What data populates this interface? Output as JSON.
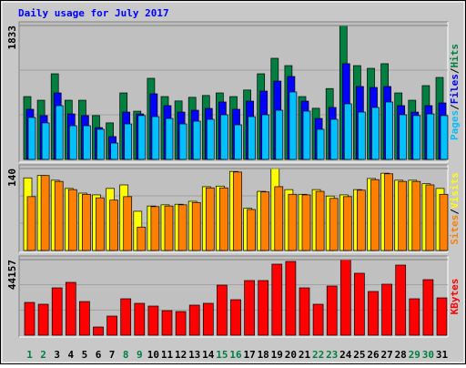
{
  "chart_data": [
    {
      "type": "bar",
      "title": "Daily usage for July 2017",
      "title_color": "#0000ff",
      "categories": [
        "1",
        "2",
        "3",
        "4",
        "5",
        "6",
        "7",
        "8",
        "9",
        "10",
        "11",
        "12",
        "13",
        "14",
        "15",
        "16",
        "17",
        "18",
        "19",
        "20",
        "21",
        "22",
        "23",
        "24",
        "25",
        "26",
        "27",
        "28",
        "29",
        "30",
        "31"
      ],
      "ylim": [
        0,
        1833
      ],
      "yticks": [
        1833
      ],
      "legend_separator": "/",
      "series": [
        {
          "name": "Pages",
          "color": "#00c0ff",
          "values": [
            574,
            500,
            736,
            461,
            461,
            412,
            224,
            486,
            600,
            586,
            561,
            486,
            524,
            549,
            611,
            474,
            586,
            611,
            673,
            923,
            661,
            412,
            549,
            761,
            648,
            711,
            786,
            611,
            600,
            623,
            600
          ]
        },
        {
          "name": "Files",
          "color": "#0000ff",
          "values": [
            686,
            600,
            910,
            623,
            600,
            436,
            312,
            648,
            623,
            898,
            736,
            648,
            673,
            698,
            786,
            686,
            798,
            935,
            1072,
            1135,
            798,
            561,
            711,
            1310,
            998,
            985,
            998,
            736,
            648,
            736,
            773
          ]
        },
        {
          "name": "Hits",
          "color": "#008040",
          "values": [
            860,
            810,
            1172,
            810,
            810,
            600,
            500,
            910,
            660,
            1110,
            860,
            800,
            850,
            875,
            910,
            860,
            950,
            1172,
            1384,
            1284,
            860,
            700,
            970,
            1833,
            1284,
            1247,
            1310,
            910,
            810,
            1010,
            1122
          ]
        }
      ]
    },
    {
      "type": "bar",
      "categories": [
        "1",
        "2",
        "3",
        "4",
        "5",
        "6",
        "7",
        "8",
        "9",
        "10",
        "11",
        "12",
        "13",
        "14",
        "15",
        "16",
        "17",
        "18",
        "19",
        "20",
        "21",
        "22",
        "23",
        "24",
        "25",
        "26",
        "27",
        "28",
        "29",
        "30",
        "31"
      ],
      "ylim": [
        0,
        140
      ],
      "yticks": [
        140
      ],
      "legend_separator": "/",
      "series": [
        {
          "name": "Sites",
          "color": "#ff8000",
          "values": [
            92,
            128,
            118,
            104,
            96,
            90,
            86,
            92,
            40,
            75,
            76,
            78,
            82,
            107,
            107,
            134,
            70,
            100,
            109,
            96,
            95,
            101,
            89,
            92,
            103,
            121,
            131,
            118,
            118,
            112,
            96
          ]
        },
        {
          "name": "Visits",
          "color": "#ffff00",
          "values": [
            124,
            128,
            120,
            106,
            98,
            95,
            106,
            112,
            67,
            76,
            78,
            79,
            84,
            109,
            110,
            135,
            72,
            101,
            140,
            104,
            96,
            104,
            93,
            95,
            104,
            123,
            132,
            120,
            120,
            114,
            106
          ]
        }
      ]
    },
    {
      "type": "bar",
      "categories": [
        "1",
        "2",
        "3",
        "4",
        "5",
        "6",
        "7",
        "8",
        "9",
        "10",
        "11",
        "12",
        "13",
        "14",
        "15",
        "16",
        "17",
        "18",
        "19",
        "20",
        "21",
        "22",
        "23",
        "24",
        "25",
        "26",
        "27",
        "28",
        "29",
        "30",
        "31"
      ],
      "category_colors": [
        "#008040",
        "#008040",
        "#000000",
        "#000000",
        "#000000",
        "#000000",
        "#000000",
        "#008040",
        "#008040",
        "#000000",
        "#000000",
        "#000000",
        "#000000",
        "#000000",
        "#008040",
        "#008040",
        "#000000",
        "#000000",
        "#000000",
        "#000000",
        "#000000",
        "#008040",
        "#008040",
        "#000000",
        "#000000",
        "#000000",
        "#000000",
        "#000000",
        "#008040",
        "#008040",
        "#000000"
      ],
      "ylim": [
        0,
        44157
      ],
      "yticks": [
        44157
      ],
      "legend_separator": "/",
      "series": [
        {
          "name": "KBytes",
          "color": "#ff0000",
          "values": [
            19150,
            18090,
            27660,
            30860,
            19680,
            4790,
            11170,
            21280,
            18620,
            17020,
            14360,
            13830,
            17560,
            18620,
            29260,
            20750,
            31920,
            31920,
            41490,
            43090,
            27660,
            18090,
            28730,
            44157,
            36180,
            25540,
            29790,
            40960,
            21280,
            32450,
            21810
          ]
        }
      ]
    }
  ]
}
